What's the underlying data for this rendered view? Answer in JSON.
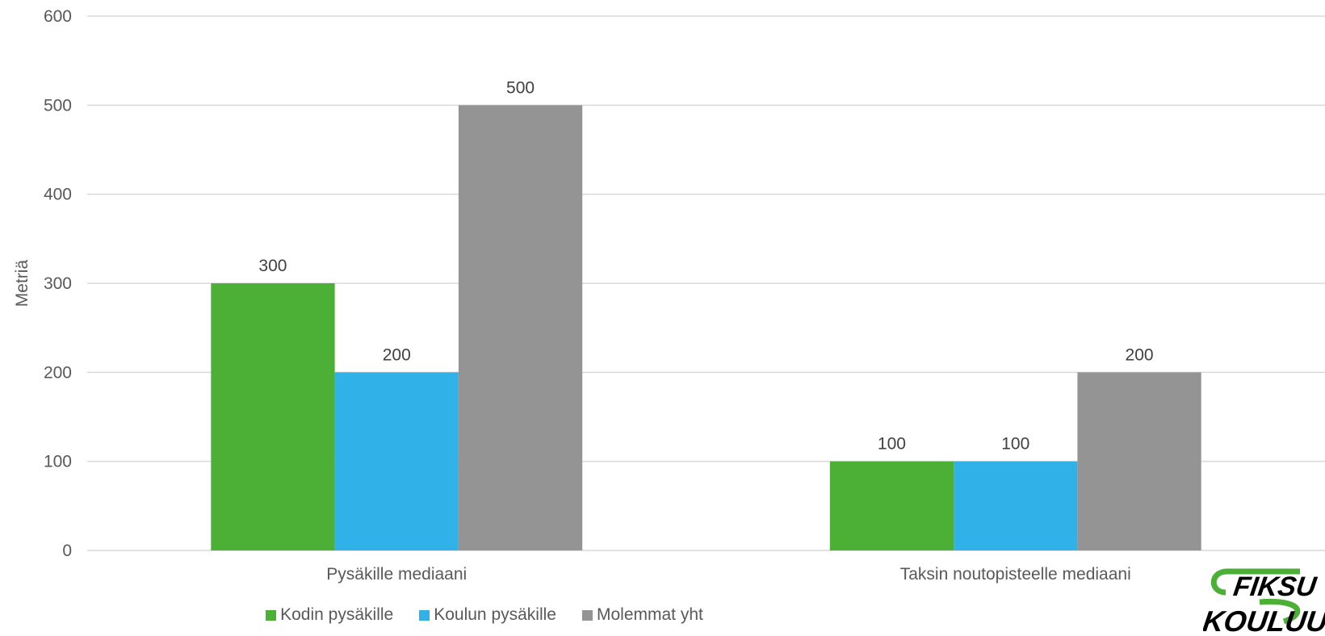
{
  "chart_data": {
    "type": "bar",
    "title": "",
    "xlabel": "",
    "ylabel": "Metriä",
    "ylim": [
      0,
      600
    ],
    "yticks": [
      0,
      100,
      200,
      300,
      400,
      500,
      600
    ],
    "grid": true,
    "legend_position": "bottom",
    "categories": [
      "Pysäkille mediaani",
      "Taksin noutopisteelle mediaani"
    ],
    "series": [
      {
        "name": "Kodin pysäkille",
        "color": "#4caf36",
        "values": [
          300,
          100
        ]
      },
      {
        "name": "Koulun pysäkille",
        "color": "#30b1e8",
        "values": [
          200,
          100
        ]
      },
      {
        "name": "Molemmat yht",
        "color": "#949494",
        "values": [
          500,
          200
        ]
      }
    ]
  },
  "logo": {
    "text_top": "FIKSU",
    "text_bottom": "KOULUUN",
    "color": "#000000",
    "accent": "#4caf36"
  }
}
